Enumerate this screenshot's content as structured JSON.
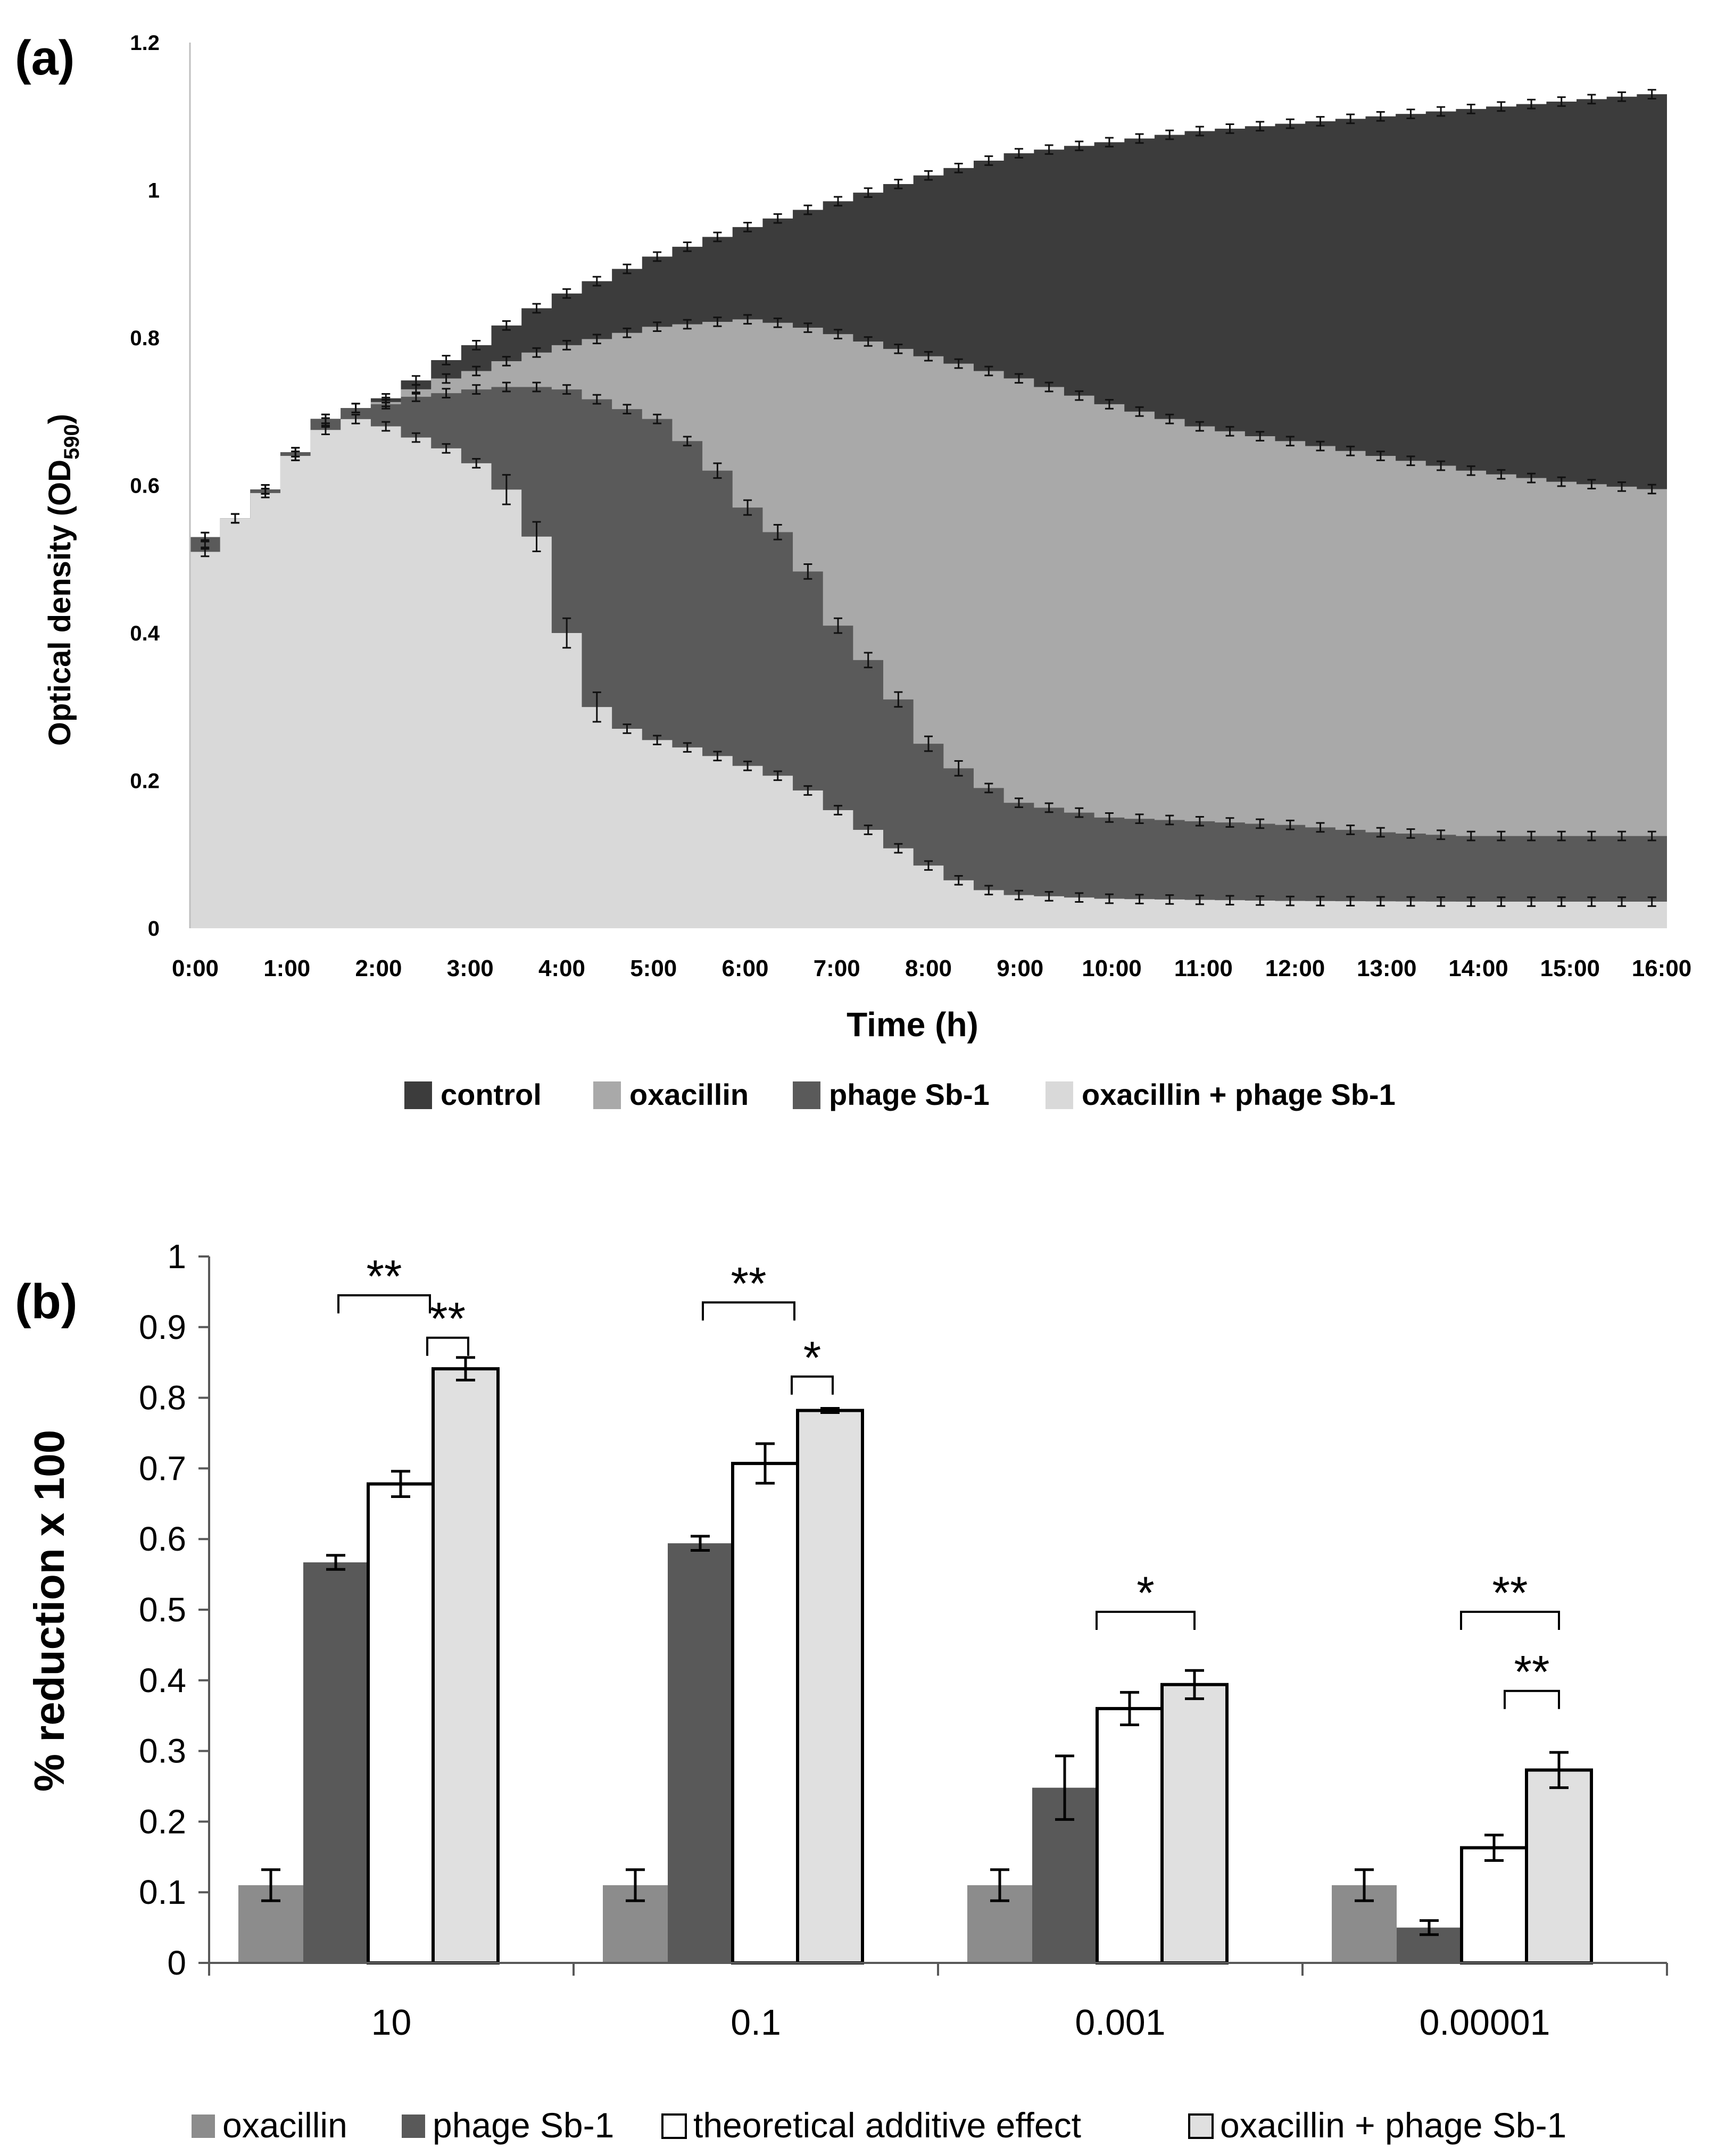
{
  "chart_data": [
    {
      "panel_label": "(a)",
      "type": "area",
      "xlabel": "Time (h)",
      "ylabel": "Optical density (OD",
      "ylabel_sub": "590",
      "ylabel_close": ")",
      "ylim": [
        0,
        1.2
      ],
      "yticks": [
        "0",
        "0.2",
        "0.4",
        "0.6",
        "0.8",
        "1",
        "1.2"
      ],
      "xticks": [
        "0:00",
        "1:00",
        "2:00",
        "3:00",
        "4:00",
        "5:00",
        "6:00",
        "7:00",
        "8:00",
        "9:00",
        "10:00",
        "11:00",
        "12:00",
        "13:00",
        "14:00",
        "15:00",
        "16:00"
      ],
      "grid": false,
      "legend_position": "bottom",
      "series": [
        {
          "name": "control",
          "color": "#3c3c3c",
          "knots": [
            [
              0,
              0.52
            ],
            [
              0.33,
              0.555
            ],
            [
              0.67,
              0.595
            ],
            [
              1,
              0.645
            ],
            [
              1.33,
              0.69
            ],
            [
              1.67,
              0.705
            ],
            [
              2,
              0.718
            ],
            [
              2.33,
              0.742
            ],
            [
              2.67,
              0.77
            ],
            [
              3,
              0.79
            ],
            [
              3.5,
              0.83
            ],
            [
              4,
              0.86
            ],
            [
              5,
              0.91
            ],
            [
              6,
              0.95
            ],
            [
              7,
              0.985
            ],
            [
              8,
              1.02
            ],
            [
              9,
              1.05
            ],
            [
              10,
              1.065
            ],
            [
              11,
              1.08
            ],
            [
              12,
              1.09
            ],
            [
              13,
              1.1
            ],
            [
              14,
              1.11
            ],
            [
              15,
              1.12
            ],
            [
              16,
              1.13
            ]
          ]
        },
        {
          "name": "oxacillin",
          "color": "#a9a9a9",
          "knots": [
            [
              0,
              0.53
            ],
            [
              0.33,
              0.555
            ],
            [
              0.67,
              0.595
            ],
            [
              1,
              0.64
            ],
            [
              1.33,
              0.685
            ],
            [
              1.67,
              0.705
            ],
            [
              2,
              0.713
            ],
            [
              2.33,
              0.73
            ],
            [
              2.67,
              0.745
            ],
            [
              3,
              0.755
            ],
            [
              3.5,
              0.775
            ],
            [
              4,
              0.79
            ],
            [
              5,
              0.815
            ],
            [
              6,
              0.825
            ],
            [
              6.5,
              0.818
            ],
            [
              7,
              0.805
            ],
            [
              8,
              0.775
            ],
            [
              9,
              0.745
            ],
            [
              10,
              0.71
            ],
            [
              11,
              0.68
            ],
            [
              12,
              0.66
            ],
            [
              13,
              0.64
            ],
            [
              14,
              0.62
            ],
            [
              15,
              0.605
            ],
            [
              16,
              0.595
            ]
          ]
        },
        {
          "name": "phage Sb-1",
          "color": "#5a5a5a",
          "knots": [
            [
              0,
              0.53
            ],
            [
              0.33,
              0.555
            ],
            [
              0.67,
              0.595
            ],
            [
              1,
              0.645
            ],
            [
              1.33,
              0.69
            ],
            [
              1.67,
              0.705
            ],
            [
              2,
              0.71
            ],
            [
              2.33,
              0.72
            ],
            [
              2.67,
              0.725
            ],
            [
              3,
              0.73
            ],
            [
              3.5,
              0.735
            ],
            [
              4,
              0.73
            ],
            [
              4.5,
              0.71
            ],
            [
              5,
              0.69
            ],
            [
              5.5,
              0.645
            ],
            [
              6,
              0.57
            ],
            [
              6.5,
              0.52
            ],
            [
              7,
              0.41
            ],
            [
              7.5,
              0.34
            ],
            [
              8,
              0.25
            ],
            [
              8.5,
              0.2
            ],
            [
              9,
              0.17
            ],
            [
              10,
              0.15
            ],
            [
              11,
              0.145
            ],
            [
              12,
              0.14
            ],
            [
              13,
              0.13
            ],
            [
              14,
              0.125
            ],
            [
              15,
              0.125
            ],
            [
              16,
              0.125
            ]
          ]
        },
        {
          "name": "oxacillin + phage Sb-1",
          "color": "#d9d9d9",
          "knots": [
            [
              0,
              0.51
            ],
            [
              0.33,
              0.555
            ],
            [
              0.67,
              0.59
            ],
            [
              1,
              0.64
            ],
            [
              1.33,
              0.675
            ],
            [
              1.67,
              0.69
            ],
            [
              2,
              0.68
            ],
            [
              2.33,
              0.665
            ],
            [
              2.67,
              0.65
            ],
            [
              3,
              0.63
            ],
            [
              3.33,
              0.595
            ],
            [
              3.67,
              0.53
            ],
            [
              4,
              0.4
            ],
            [
              4.33,
              0.3
            ],
            [
              4.67,
              0.27
            ],
            [
              5,
              0.255
            ],
            [
              5.5,
              0.24
            ],
            [
              6,
              0.22
            ],
            [
              6.5,
              0.2
            ],
            [
              7,
              0.16
            ],
            [
              7.5,
              0.12
            ],
            [
              8,
              0.085
            ],
            [
              8.5,
              0.055
            ],
            [
              9,
              0.045
            ],
            [
              10,
              0.04
            ],
            [
              12,
              0.037
            ],
            [
              14,
              0.036
            ],
            [
              16,
              0.036
            ]
          ]
        }
      ]
    },
    {
      "panel_label": "(b)",
      "type": "bar",
      "ylabel": "% reduction x 100",
      "ylim": [
        0,
        1
      ],
      "yticks": [
        "0",
        "0.1",
        "0.2",
        "0.3",
        "0.4",
        "0.5",
        "0.6",
        "0.7",
        "0.8",
        "0.9",
        "1"
      ],
      "categories": [
        "10",
        "0.1",
        "0.001",
        "0.00001"
      ],
      "grid": false,
      "legend_position": "bottom",
      "series": [
        {
          "name": "oxacillin",
          "color": "#8c8c8c",
          "values": [
            0.11,
            0.11,
            0.11,
            0.11
          ],
          "errors": [
            0.022,
            0.022,
            0.022,
            0.022
          ]
        },
        {
          "name": "phage Sb-1",
          "color": "#595959",
          "values": [
            0.567,
            0.594,
            0.248,
            0.05
          ],
          "errors": [
            0.01,
            0.01,
            0.045,
            0.01
          ]
        },
        {
          "name": "theoretical additive effect",
          "color": "#ffffff",
          "values": [
            0.678,
            0.707,
            0.36,
            0.163
          ],
          "errors": [
            0.018,
            0.028,
            0.023,
            0.018
          ]
        },
        {
          "name": "oxacillin + phage Sb-1",
          "color": "#e0e0e0",
          "values": [
            0.841,
            0.782,
            0.394,
            0.273
          ],
          "errors": [
            0.016,
            0.003,
            0.02,
            0.025
          ]
        }
      ],
      "annotations": [
        "**",
        "**",
        "**",
        "*",
        "*",
        "**",
        "**"
      ]
    }
  ]
}
